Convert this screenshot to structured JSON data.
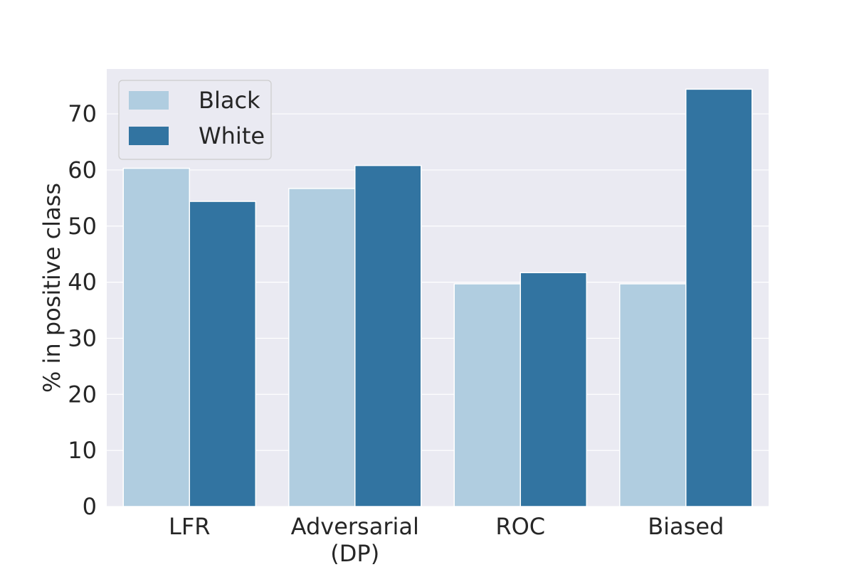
{
  "chart_data": {
    "type": "bar",
    "title": "",
    "xlabel": "",
    "ylabel": "% in positive class",
    "categories": [
      [
        "LFR"
      ],
      [
        "Adversarial",
        "(DP)"
      ],
      [
        "ROC"
      ],
      [
        "Biased"
      ]
    ],
    "series": [
      {
        "name": "Black",
        "color": "#b0cde0",
        "values": [
          60.3,
          56.7,
          39.7,
          39.7
        ]
      },
      {
        "name": "White",
        "color": "#3274a1",
        "values": [
          54.4,
          60.8,
          41.7,
          74.4
        ]
      }
    ],
    "ylim": [
      0,
      78
    ],
    "yticks": [
      0,
      10,
      20,
      30,
      40,
      50,
      60,
      70
    ],
    "grid": true,
    "legend": "upper-left",
    "style": {
      "background": "#eaeaf2",
      "grid_color": "#ffffff"
    }
  }
}
